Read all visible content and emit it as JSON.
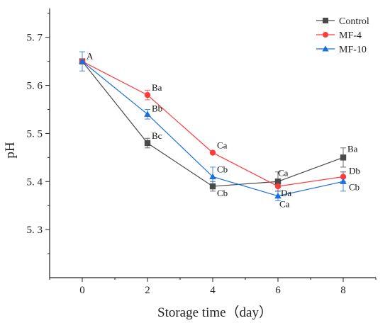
{
  "chart_data": {
    "type": "line",
    "title": "",
    "xlabel": "Storage time（day）",
    "ylabel": "pH",
    "x": [
      0,
      2,
      4,
      6,
      8
    ],
    "xlim": [
      -1,
      9
    ],
    "ylim": [
      5.2,
      5.76
    ],
    "x_ticks": [
      0,
      2,
      4,
      6,
      8
    ],
    "y_ticks": [
      5.3,
      5.4,
      5.5,
      5.6,
      5.7
    ],
    "y_tick_labels": [
      "5. 3",
      "5. 4",
      "5. 5",
      "5. 6",
      "5. 7"
    ],
    "grid": false,
    "legend_position": "top-right",
    "series": [
      {
        "name": "Control",
        "color": "#4a4a4a",
        "marker": "square",
        "values": [
          5.65,
          5.48,
          5.39,
          5.4,
          5.45
        ],
        "errors": [
          0.0,
          0.01,
          0.01,
          0.02,
          0.02
        ],
        "labels": [
          "",
          "Bc",
          "Cb",
          "Ca",
          "Ba"
        ]
      },
      {
        "name": "MF-4",
        "color": "#ff3b3b",
        "marker": "circle",
        "values": [
          5.65,
          5.58,
          5.46,
          5.39,
          5.41
        ],
        "errors": [
          0.0,
          0.01,
          0.0,
          0.0,
          0.01
        ],
        "labels": [
          "",
          "Ba",
          "Ca",
          "Da",
          "Db"
        ]
      },
      {
        "name": "MF-10",
        "color": "#1a6fe0",
        "marker": "triangle",
        "values": [
          5.65,
          5.54,
          5.41,
          5.37,
          5.4
        ],
        "errors": [
          0.02,
          0.01,
          0.02,
          0.01,
          0.02
        ],
        "labels": [
          "A",
          "Bb",
          "Cb",
          "Ca",
          "Cb"
        ]
      }
    ]
  }
}
